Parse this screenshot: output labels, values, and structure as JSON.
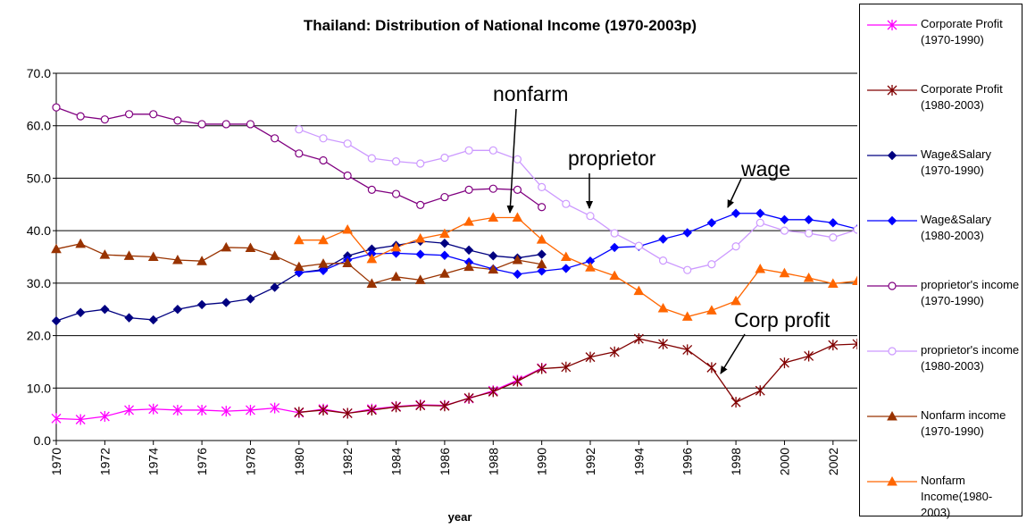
{
  "chart_data": {
    "type": "line",
    "title": "Thailand: Distribution of National Income (1970-2003p)",
    "x_label": "year",
    "xlim": [
      1970,
      2003
    ],
    "xticks": [
      1970,
      1972,
      1974,
      1976,
      1978,
      1980,
      1982,
      1984,
      1986,
      1988,
      1990,
      1992,
      1994,
      1996,
      1998,
      2000,
      2002
    ],
    "ylim": [
      0,
      70
    ],
    "yticks": [
      {
        "value": 0,
        "label": "0.0"
      },
      {
        "value": 10,
        "label": "10.0"
      },
      {
        "value": 20,
        "label": "20.0"
      },
      {
        "value": 30,
        "label": "30.0"
      },
      {
        "value": 40,
        "label": "40.0"
      },
      {
        "value": 50,
        "label": "50.0"
      },
      {
        "value": 60,
        "label": "60.0"
      },
      {
        "value": 70,
        "label": "70.0"
      }
    ],
    "grid": true,
    "legend": "right",
    "series": [
      {
        "name": "Corporate Profit (1970-1990)",
        "color": "#ff00ff",
        "marker": "asterisk",
        "x": [
          1970,
          1971,
          1972,
          1973,
          1974,
          1975,
          1976,
          1977,
          1978,
          1979,
          1980,
          1981,
          1982,
          1983,
          1984,
          1985,
          1986,
          1987,
          1988,
          1989,
          1990
        ],
        "values": [
          4.2,
          4.0,
          4.6,
          5.8,
          6.0,
          5.8,
          5.8,
          5.6,
          5.8,
          6.2,
          5.3,
          6.0,
          5.2,
          6.0,
          6.5,
          6.8,
          6.7,
          8.0,
          9.5,
          11.5,
          13.8
        ]
      },
      {
        "name": "Corporate Profit (1980-2003)",
        "color": "#800000",
        "marker": "asterisk",
        "x": [
          1980,
          1981,
          1982,
          1983,
          1984,
          1985,
          1986,
          1987,
          1988,
          1989,
          1990,
          1991,
          1992,
          1993,
          1994,
          1995,
          1996,
          1997,
          1998,
          1999,
          2000,
          2001,
          2002,
          2003
        ],
        "values": [
          5.4,
          5.8,
          5.2,
          5.8,
          6.4,
          6.7,
          6.6,
          8.1,
          9.3,
          11.3,
          13.7,
          14.0,
          15.9,
          16.9,
          19.4,
          18.4,
          17.3,
          13.9,
          7.3,
          9.5,
          14.8,
          16.1,
          18.2,
          18.4
        ]
      },
      {
        "name": "Wage&Salary (1970-1990)",
        "color": "#000080",
        "marker": "diamond",
        "x": [
          1970,
          1971,
          1972,
          1973,
          1974,
          1975,
          1976,
          1977,
          1978,
          1979,
          1980,
          1981,
          1982,
          1983,
          1984,
          1985,
          1986,
          1987,
          1988,
          1989,
          1990
        ],
        "values": [
          22.8,
          24.4,
          25.0,
          23.4,
          23.0,
          25.0,
          25.9,
          26.3,
          27.0,
          29.2,
          32.0,
          32.6,
          35.2,
          36.5,
          37.2,
          38.0,
          37.6,
          36.3,
          35.2,
          34.8,
          35.5
        ]
      },
      {
        "name": "Wage&Salary (1980-2003)",
        "color": "#0000ff",
        "marker": "diamond",
        "x": [
          1980,
          1981,
          1982,
          1983,
          1984,
          1985,
          1986,
          1987,
          1988,
          1989,
          1990,
          1991,
          1992,
          1993,
          1994,
          1995,
          1996,
          1997,
          1998,
          1999,
          2000,
          2001,
          2002,
          2003
        ],
        "values": [
          32.0,
          32.4,
          34.4,
          35.6,
          35.7,
          35.5,
          35.3,
          34.0,
          32.7,
          31.7,
          32.3,
          32.8,
          34.2,
          36.8,
          37.0,
          38.4,
          39.6,
          41.5,
          43.3,
          43.3,
          42.1,
          42.1,
          41.5,
          40.3
        ]
      },
      {
        "name": "proprietor's income (1970-1990)",
        "color": "#800080",
        "marker": "circle",
        "x": [
          1970,
          1971,
          1972,
          1973,
          1974,
          1975,
          1976,
          1977,
          1978,
          1979,
          1980,
          1981,
          1982,
          1983,
          1984,
          1985,
          1986,
          1987,
          1988,
          1989,
          1990
        ],
        "values": [
          63.5,
          61.8,
          61.2,
          62.2,
          62.2,
          61.0,
          60.3,
          60.3,
          60.3,
          57.6,
          54.7,
          53.4,
          50.5,
          47.8,
          47.0,
          44.9,
          46.4,
          47.8,
          48.0,
          47.8,
          44.5
        ]
      },
      {
        "name": "proprietor's income (1980-2003)",
        "color": "#cc99ff",
        "marker": "circle",
        "x": [
          1980,
          1981,
          1982,
          1983,
          1984,
          1985,
          1986,
          1987,
          1988,
          1989,
          1990,
          1991,
          1992,
          1993,
          1994,
          1995,
          1996,
          1997,
          1998,
          1999,
          2000,
          2001,
          2002,
          2003
        ],
        "values": [
          59.3,
          57.6,
          56.6,
          53.8,
          53.2,
          52.8,
          53.9,
          55.3,
          55.3,
          53.6,
          48.3,
          45.1,
          42.8,
          39.5,
          37.1,
          34.3,
          32.5,
          33.6,
          37.0,
          41.5,
          40.0,
          39.5,
          38.7,
          40.2
        ]
      },
      {
        "name": "Nonfarm income (1970-1990)",
        "color": "#993300",
        "marker": "triangle",
        "x": [
          1970,
          1971,
          1972,
          1973,
          1974,
          1975,
          1976,
          1977,
          1978,
          1979,
          1980,
          1981,
          1982,
          1983,
          1984,
          1985,
          1986,
          1987,
          1988,
          1989,
          1990
        ],
        "values": [
          36.5,
          37.5,
          35.4,
          35.2,
          35.0,
          34.4,
          34.2,
          36.8,
          36.7,
          35.2,
          33.1,
          33.7,
          33.8,
          29.9,
          31.2,
          30.6,
          31.8,
          33.1,
          32.6,
          34.4,
          33.6
        ]
      },
      {
        "name": "Nonfarm Income(1980-2003)",
        "color": "#ff6600",
        "marker": "triangle",
        "x": [
          1980,
          1981,
          1982,
          1983,
          1984,
          1985,
          1986,
          1987,
          1988,
          1989,
          1990,
          1991,
          1992,
          1993,
          1994,
          1995,
          1996,
          1997,
          1998,
          1999,
          2000,
          2001,
          2002,
          2003
        ],
        "values": [
          38.2,
          38.2,
          40.2,
          34.6,
          36.8,
          38.5,
          39.4,
          41.7,
          42.5,
          42.5,
          38.3,
          35.0,
          33.0,
          31.4,
          28.5,
          25.2,
          23.6,
          24.8,
          26.6,
          32.7,
          31.9,
          31.0,
          29.9,
          30.4
        ]
      }
    ],
    "annotations": [
      "nonfarm",
      "proprietor",
      "wage",
      "Corp profit"
    ]
  }
}
